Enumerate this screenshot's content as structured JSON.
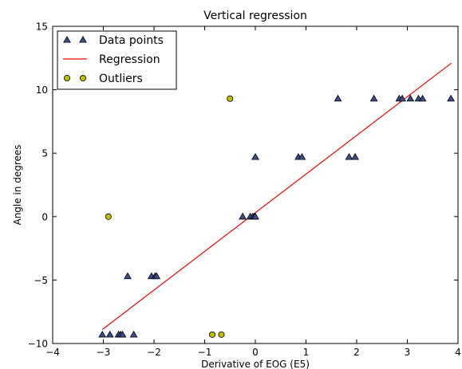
{
  "chart_data": {
    "type": "scatter",
    "title": "Vertical regression",
    "xlabel": "Derivative of EOG (E5)",
    "ylabel": "Angle in degrees",
    "xlim": [
      -4,
      4
    ],
    "ylim": [
      -10,
      15
    ],
    "xticks": [
      -4,
      -3,
      -2,
      -1,
      0,
      1,
      2,
      3,
      4
    ],
    "yticks": [
      -10,
      -5,
      0,
      5,
      10,
      15
    ],
    "xtick_labels": [
      "−4",
      "−3",
      "−2",
      "−1",
      "0",
      "1",
      "2",
      "3",
      "4"
    ],
    "ytick_labels": [
      "−10",
      "−5",
      "0",
      "5",
      "10",
      "15"
    ],
    "grid": false,
    "legend_position": "top-left",
    "series": [
      {
        "name": "Data points",
        "kind": "scatter",
        "marker": "triangle",
        "color": "#3b4f8f",
        "points": [
          [
            -3.02,
            -9.3
          ],
          [
            -2.87,
            -9.3
          ],
          [
            -2.7,
            -9.3
          ],
          [
            -2.66,
            -9.3
          ],
          [
            -2.62,
            -9.3
          ],
          [
            -2.4,
            -9.3
          ],
          [
            -2.52,
            -4.7
          ],
          [
            -2.05,
            -4.7
          ],
          [
            -1.98,
            -4.7
          ],
          [
            -1.95,
            -4.7
          ],
          [
            -0.25,
            0.0
          ],
          [
            -0.1,
            0.0
          ],
          [
            -0.05,
            0.0
          ],
          [
            -0.02,
            0.0
          ],
          [
            0.0,
            0.0
          ],
          [
            0.0,
            4.7
          ],
          [
            0.85,
            4.7
          ],
          [
            0.92,
            4.7
          ],
          [
            1.85,
            4.7
          ],
          [
            1.97,
            4.7
          ],
          [
            1.63,
            9.3
          ],
          [
            2.34,
            9.3
          ],
          [
            2.84,
            9.3
          ],
          [
            2.9,
            9.3
          ],
          [
            3.06,
            9.3
          ],
          [
            3.22,
            9.3
          ],
          [
            3.3,
            9.3
          ],
          [
            3.86,
            9.3
          ]
        ]
      },
      {
        "name": "Regression",
        "kind": "line",
        "color": "#ff0000",
        "points": [
          [
            -3.02,
            -8.9
          ],
          [
            3.87,
            12.1
          ]
        ]
      },
      {
        "name": "Outliers",
        "kind": "scatter",
        "marker": "circle",
        "color": "#bfbf00",
        "points": [
          [
            -2.9,
            0.0
          ],
          [
            -0.5,
            9.3
          ],
          [
            -0.85,
            -9.3
          ],
          [
            -0.67,
            -9.3
          ]
        ]
      }
    ]
  }
}
